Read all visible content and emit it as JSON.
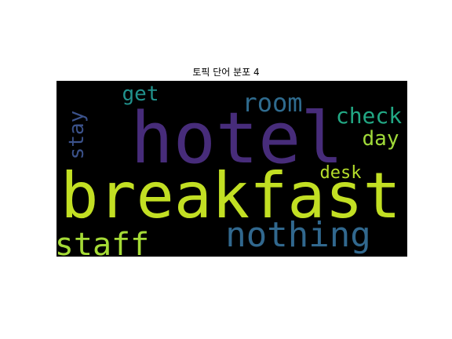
{
  "chart": {
    "title": "토픽 단어 분포 4"
  },
  "chart_data": {
    "type": "wordcloud",
    "title": "토픽 단어 분포 4",
    "background": "#000000",
    "colormap": "viridis",
    "words": [
      {
        "text": "hotel",
        "weight": 1.0,
        "color": "#472c7a",
        "orientation": "horizontal"
      },
      {
        "text": "breakfast",
        "weight": 0.9,
        "color": "#c2df23",
        "orientation": "horizontal"
      },
      {
        "text": "nothing",
        "weight": 0.52,
        "color": "#31688e",
        "orientation": "horizontal"
      },
      {
        "text": "staff",
        "weight": 0.47,
        "color": "#a5db36",
        "orientation": "horizontal"
      },
      {
        "text": "room",
        "weight": 0.34,
        "color": "#2f6b8e",
        "orientation": "horizontal"
      },
      {
        "text": "check",
        "weight": 0.3,
        "color": "#22a884",
        "orientation": "horizontal"
      },
      {
        "text": "day",
        "weight": 0.28,
        "color": "#a0da39",
        "orientation": "horizontal"
      },
      {
        "text": "desk",
        "weight": 0.24,
        "color": "#b5de2b",
        "orientation": "horizontal"
      },
      {
        "text": "get",
        "weight": 0.26,
        "color": "#21918c",
        "orientation": "horizontal"
      },
      {
        "text": "stay",
        "weight": 0.28,
        "color": "#3b528b",
        "orientation": "vertical"
      }
    ]
  }
}
